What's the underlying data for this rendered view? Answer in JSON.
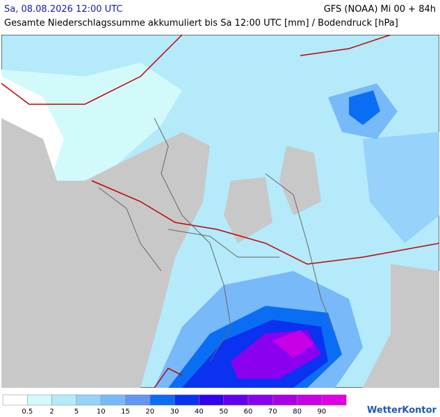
{
  "header": {
    "valid_time": "Sa, 08.08.2026 12:00 UTC",
    "model_run": "GFS (NOAA) Mi 00 + 84h",
    "description": "Gesamte Niederschlagssumme akkumuliert bis Sa 12:00 UTC [mm] / Bodendruck [hPa]"
  },
  "legend": {
    "colors": [
      "#ffffff",
      "#d2fafa",
      "#b4eafa",
      "#96d2fa",
      "#78b9fa",
      "#6496f5",
      "#0a6ef5",
      "#0a32f0",
      "#3200f0",
      "#6400f0",
      "#8c00f0",
      "#aa00e6",
      "#c800e6",
      "#e100e6"
    ],
    "labels": [
      0.5,
      2,
      5,
      10,
      15,
      20,
      30,
      40,
      50,
      60,
      70,
      80,
      90
    ]
  },
  "logo": "WetterKontor"
}
